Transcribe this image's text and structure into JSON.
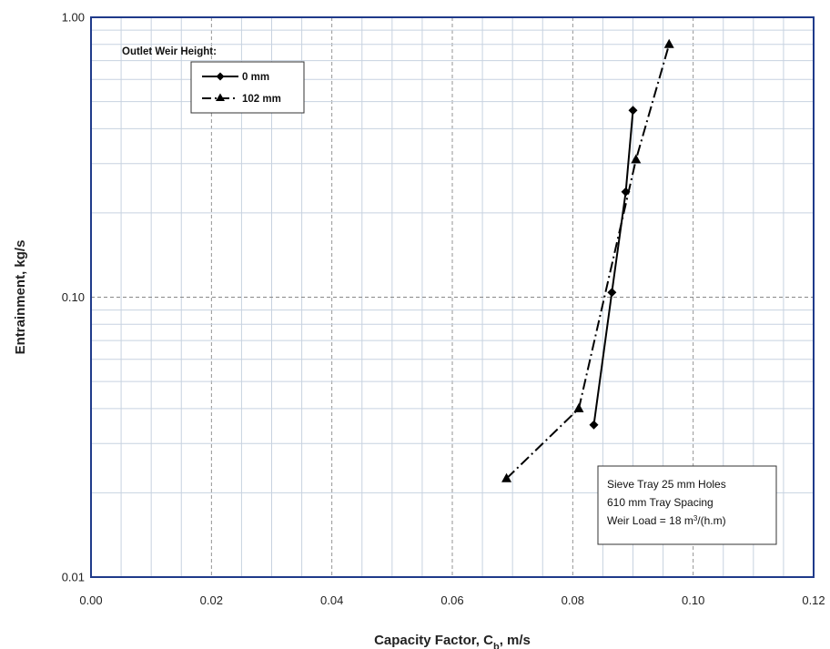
{
  "chart_data": {
    "type": "line",
    "xlabel": "Capacity Factor, C",
    "xlabel_sub": "b",
    "xlabel_suffix": ", m/s",
    "ylabel": "Entrainment,  kg/s",
    "xlim": [
      0,
      0.12
    ],
    "ylim": [
      0.01,
      1.0
    ],
    "y_scale": "log",
    "grid": true,
    "x_ticks": [
      "0.00",
      "0.02",
      "0.04",
      "0.06",
      "0.08",
      "0.10",
      "0.12"
    ],
    "y_ticks": [
      "0.01",
      "0.10",
      "1.00"
    ],
    "legend": {
      "title": "Outlet Weir Height:",
      "placement": "top-left"
    },
    "series": [
      {
        "name": "0 mm",
        "marker": "diamond",
        "line": "solid",
        "color": "#000000",
        "x": [
          0.0835,
          0.0865,
          0.0888,
          0.09
        ],
        "y": [
          0.035,
          0.104,
          0.238,
          0.465
        ]
      },
      {
        "name": "102 mm",
        "marker": "triangle",
        "line": "dash-dot",
        "color": "#000000",
        "x": [
          0.069,
          0.081,
          0.0905,
          0.096
        ],
        "y": [
          0.0225,
          0.04,
          0.31,
          0.8
        ]
      }
    ],
    "annotation": {
      "line1": "Sieve Tray 25 mm Holes",
      "line2": "610 mm Tray Spacing",
      "line3_prefix": "Weir Load = 18 m",
      "line3_sup": "3",
      "line3_suffix": "/(h.m)"
    }
  }
}
